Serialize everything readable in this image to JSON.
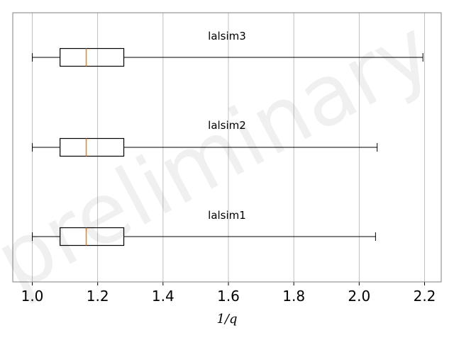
{
  "chart_data": {
    "type": "boxplot",
    "orientation": "horizontal",
    "xlabel": "1/q",
    "xlim": [
      0.94,
      2.25
    ],
    "xticks": [
      "1.0",
      "1.2",
      "1.4",
      "1.6",
      "1.8",
      "2.0",
      "2.2"
    ],
    "tick_values": [
      1.0,
      1.2,
      1.4,
      1.6,
      1.8,
      2.0,
      2.2
    ],
    "grid": "vertical",
    "boxes": [
      {
        "label": "lalsim1",
        "whisker_low": 1.0,
        "q1": 1.085,
        "median": 1.165,
        "q3": 1.28,
        "whisker_high": 2.05
      },
      {
        "label": "lalsim2",
        "whisker_low": 1.0,
        "q1": 1.085,
        "median": 1.165,
        "q3": 1.28,
        "whisker_high": 2.055
      },
      {
        "label": "lalsim3",
        "whisker_low": 1.0,
        "q1": 1.085,
        "median": 1.165,
        "q3": 1.28,
        "whisker_high": 2.195
      }
    ],
    "colors": {
      "box": "#000000",
      "median": "#ff7f0e",
      "grid": "#b0b0b0",
      "frame": "#808080"
    }
  },
  "watermark": "preliminary"
}
